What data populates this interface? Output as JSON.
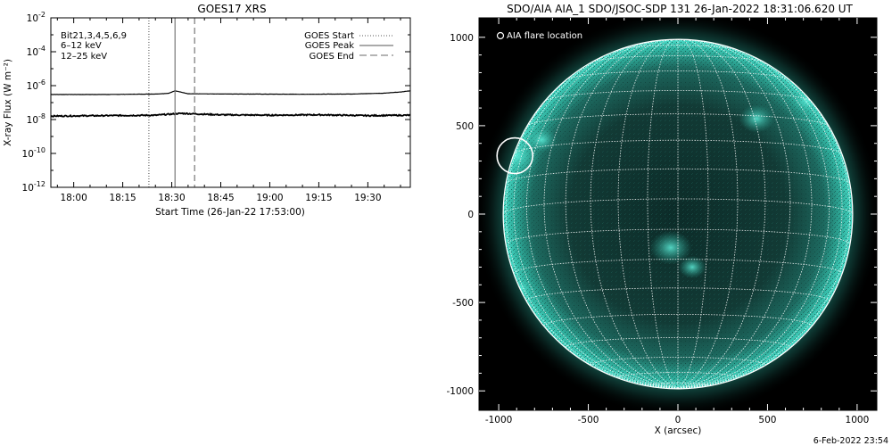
{
  "chart_data": [
    {
      "type": "line",
      "title": "GOES17 XRS",
      "xlabel": "Start Time (26-Jan-22 17:53:00)",
      "ylabel": "X-ray Flux (W m⁻²)",
      "y_scale": "log",
      "ylim": [
        1e-12,
        0.01
      ],
      "xlim": [
        "17:53",
        "19:43"
      ],
      "x_tick_labels": [
        "18:00",
        "18:15",
        "18:30",
        "18:45",
        "19:00",
        "19:15",
        "19:30"
      ],
      "y_tick_labels": [
        {
          "base": "10",
          "exp": "-2"
        },
        {
          "base": "10",
          "exp": "-4"
        },
        {
          "base": "10",
          "exp": "-6"
        },
        {
          "base": "10",
          "exp": "-8"
        },
        {
          "base": "10",
          "exp": "-10"
        },
        {
          "base": "10",
          "exp": "-12"
        }
      ],
      "annotations": {
        "bits_label": "Bit21,3,4,5,6,9",
        "band_1": "6–12 keV",
        "band_2": "12–25 keV",
        "band_1_color": "#cc00cc",
        "band_2_color": "#00cc00"
      },
      "legend_placement": "top-right",
      "legend": [
        {
          "label": "GOES Start",
          "style": "dotted"
        },
        {
          "label": "GOES Peak",
          "style": "solid"
        },
        {
          "label": "GOES End",
          "style": "dashed"
        }
      ],
      "event_markers": {
        "start": "18:23",
        "peak": "18:31",
        "end": "18:37"
      },
      "series": [
        {
          "x": [
            "17:53",
            "18:10",
            "18:25",
            "18:29",
            "18:31",
            "18:35",
            "18:50",
            "19:10",
            "19:25",
            "19:35",
            "19:40",
            "19:43"
          ],
          "y": [
            3e-07,
            3e-07,
            3.2e-07,
            3.5e-07,
            5e-07,
            3.3e-07,
            3.2e-07,
            3.1e-07,
            3.2e-07,
            3.6e-07,
            4.2e-07,
            5e-07
          ],
          "color": "#000000"
        },
        {
          "x": [
            "17:53",
            "18:10",
            "18:25",
            "18:30",
            "18:33",
            "18:45",
            "19:00",
            "19:15",
            "19:30",
            "19:43"
          ],
          "y": [
            1.6e-08,
            1.7e-08,
            1.8e-08,
            2.1e-08,
            2.3e-08,
            1.9e-08,
            1.8e-08,
            1.9e-08,
            1.7e-08,
            1.8e-08
          ],
          "color": "#000000"
        }
      ]
    },
    {
      "type": "heatmap",
      "title": "SDO/AIA AIA_1 SDO/JSOC-SDP 131 26-Jan-2022 18:31:06.620 UT",
      "xlabel": "X (arcsec)",
      "ylabel": "",
      "xlim": [
        -1110,
        1110
      ],
      "ylim": [
        -1110,
        1110
      ],
      "x_tick_labels": [
        "-1000",
        "-500",
        "0",
        "500",
        "1000"
      ],
      "y_tick_labels": [
        "1000",
        "500",
        "0",
        "-500",
        "-1000"
      ],
      "legend": "AIA flare location",
      "legend_placement": "top-left",
      "solar_radius_arcsec": 975,
      "grid": true,
      "flare_location": {
        "x": -910,
        "y": 330
      },
      "colormap_color": "#37c9b4"
    }
  ],
  "footer": {
    "timestamp": "6-Feb-2022 23:54"
  }
}
